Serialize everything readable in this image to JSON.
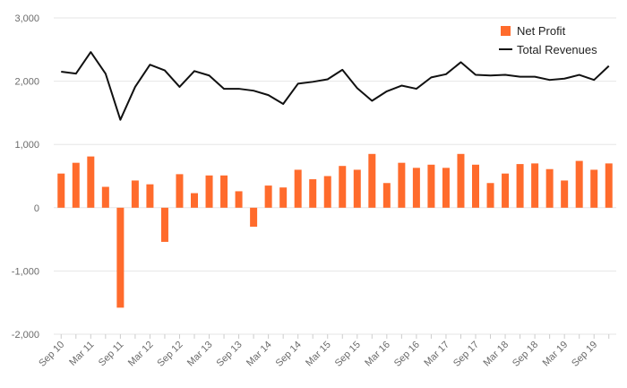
{
  "chart_data": {
    "type": "bar",
    "title": "",
    "xlabel": "",
    "ylabel": "",
    "ylim": [
      -2000,
      3000
    ],
    "yticks": [
      3000,
      2000,
      1000,
      0,
      -1000,
      -2000
    ],
    "ytick_labels": [
      "3,000",
      "2,000",
      "1,000",
      "0",
      "-1,000",
      "-2,000"
    ],
    "grid": true,
    "legend_position": "top-right",
    "categories": [
      "Sep 10",
      "Dec 10",
      "Mar 11",
      "Jun 11",
      "Sep 11",
      "Dec 11",
      "Mar 12",
      "Jun 12",
      "Sep 12",
      "Dec 12",
      "Mar 13",
      "Jun 13",
      "Sep 13",
      "Dec 13",
      "Mar 14",
      "Jun 14",
      "Sep 14",
      "Dec 14",
      "Mar 15",
      "Jun 15",
      "Sep 15",
      "Dec 15",
      "Mar 16",
      "Jun 16",
      "Sep 16",
      "Dec 16",
      "Mar 17",
      "Jun 17",
      "Sep 17",
      "Dec 17",
      "Mar 18",
      "Jun 18",
      "Sep 18",
      "Dec 18",
      "Mar 19",
      "Jun 19",
      "Sep 19",
      "Dec 19"
    ],
    "xtick_labels": [
      "Sep 10",
      "Mar 11",
      "Sep 11",
      "Mar 12",
      "Sep 12",
      "Mar 13",
      "Sep 13",
      "Mar 14",
      "Sep 14",
      "Mar 15",
      "Sep 15",
      "Mar 16",
      "Sep 16",
      "Mar 17",
      "Sep 17",
      "Mar 18",
      "Sep 18",
      "Mar 19",
      "Sep 19"
    ],
    "series": [
      {
        "name": "Net Profit",
        "type": "bar",
        "color": "#ff6b2c",
        "values": [
          540,
          710,
          810,
          330,
          -1580,
          430,
          370,
          -540,
          530,
          230,
          510,
          510,
          260,
          -300,
          350,
          320,
          600,
          450,
          500,
          660,
          600,
          850,
          390,
          710,
          630,
          680,
          630,
          850,
          680,
          390,
          540,
          690,
          700,
          610,
          430,
          740,
          600,
          700
        ]
      },
      {
        "name": "Total Revenues",
        "type": "line",
        "color": "#111111",
        "values": [
          2150,
          2120,
          2460,
          2120,
          1390,
          1910,
          2260,
          2170,
          1910,
          2160,
          2090,
          1880,
          1880,
          1850,
          1780,
          1640,
          1960,
          1990,
          2030,
          2180,
          1890,
          1690,
          1840,
          1930,
          1880,
          2060,
          2110,
          2300,
          2100,
          2090,
          2100,
          2070,
          2070,
          2020,
          2040,
          2100,
          2020,
          2240
        ]
      }
    ]
  }
}
